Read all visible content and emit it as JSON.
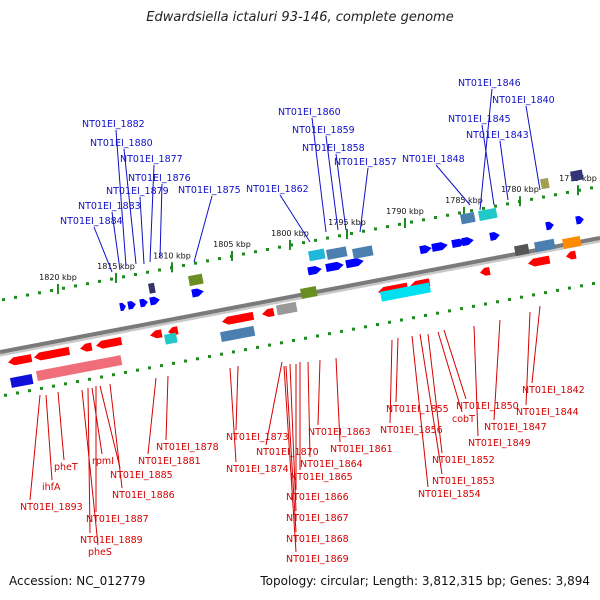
{
  "title": "Edwardsiella ictaluri 93-146, complete genome",
  "footer": {
    "accession": "Accession: NC_012779",
    "summary": "Topology: circular; Length: 3,812,315 bp; Genes: 3,894"
  },
  "colors": {
    "forward_label": "#1010c8",
    "reverse_label": "#d40000",
    "forward_gene": "#0000ff",
    "reverse_gene": "#ff0000",
    "backbone": "#7a7a7a",
    "tick": "#1f8a1f"
  },
  "scale_labels": [
    "1775 kbp",
    "1780 kbp",
    "1785 kbp",
    "1790 kbp",
    "1795 kbp",
    "1800 kbp",
    "1805 kbp",
    "1810 kbp",
    "1815 kbp",
    "1820 kbp"
  ],
  "top_labels": [
    "NT01EI_1846",
    "NT01EI_1840",
    "NT01EI_1845",
    "NT01EI_1843",
    "NT01EI_1848",
    "NT01EI_1860",
    "NT01EI_1859",
    "NT01EI_1858",
    "NT01EI_1857",
    "NT01EI_1862",
    "NT01EI_1882",
    "NT01EI_1880",
    "NT01EI_1877",
    "NT01EI_1876",
    "NT01EI_1879",
    "NT01EI_1875",
    "NT01EI_1883",
    "NT01EI_1884"
  ],
  "bottom_labels": [
    "pheT",
    "ihfA",
    "NT01EI_1893",
    "rpmI",
    "NT01EI_1885",
    "NT01EI_1886",
    "NT01EI_1887",
    "NT01EI_1889",
    "pheS",
    "NT01EI_1878",
    "NT01EI_1881",
    "NT01EI_1873",
    "NT01EI_1874",
    "NT01EI_1870",
    "NT01EI_1863",
    "NT01EI_1861",
    "NT01EI_1864",
    "NT01EI_1865",
    "NT01EI_1866",
    "NT01EI_1867",
    "NT01EI_1868",
    "NT01EI_1869",
    "NT01EI_1855",
    "NT01EI_1856",
    "cobT",
    "NT01EI_1850",
    "NT01EI_1852",
    "NT01EI_1853",
    "NT01EI_1854",
    "NT01EI_1849",
    "NT01EI_1847",
    "NT01EI_1844",
    "NT01EI_1842"
  ]
}
